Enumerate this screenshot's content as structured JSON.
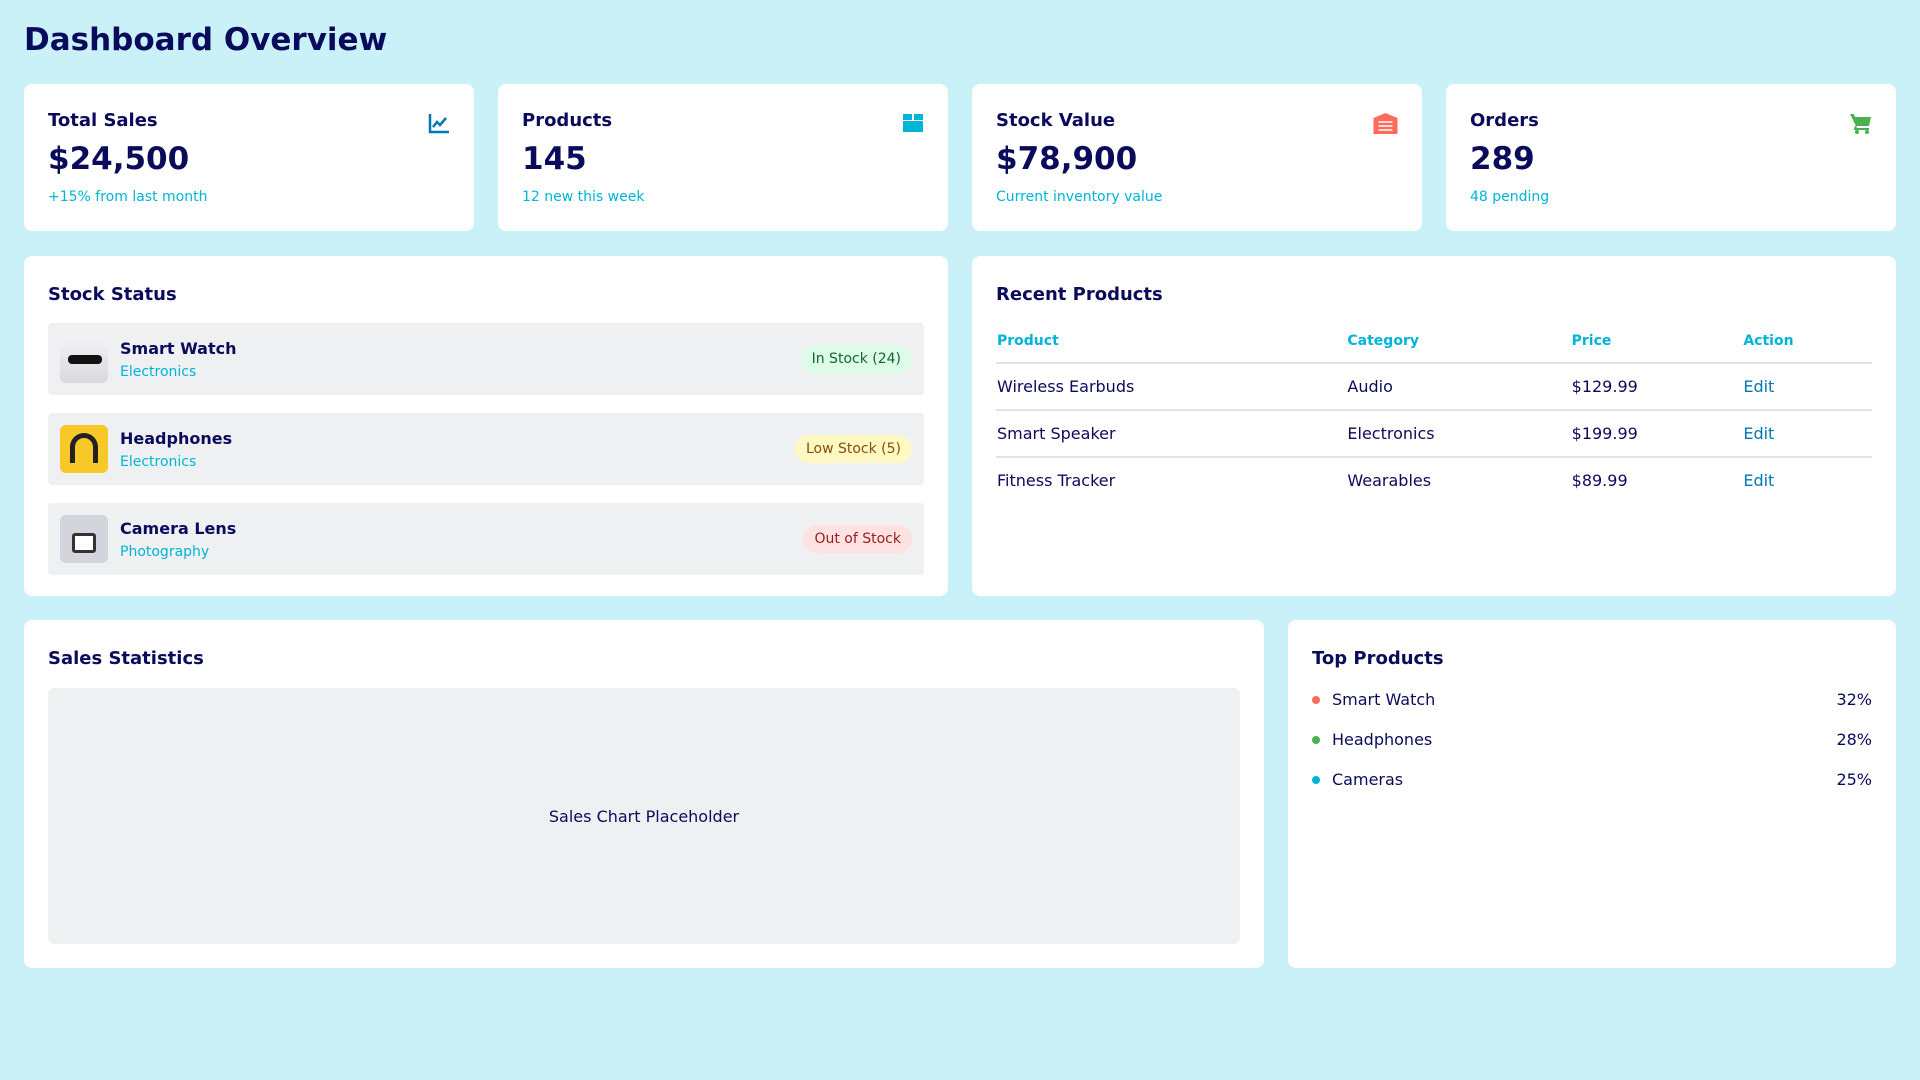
{
  "page_title": "Dashboard Overview",
  "stats": [
    {
      "title": "Total Sales",
      "value": "$24,500",
      "sub": "+15% from last month",
      "icon": "chart-line-icon",
      "color": "#0077b6"
    },
    {
      "title": "Products",
      "value": "145",
      "sub": "12 new this week",
      "icon": "box-icon",
      "color": "#00b4d8"
    },
    {
      "title": "Stock Value",
      "value": "$78,900",
      "sub": "Current inventory value",
      "icon": "warehouse-icon",
      "color": "#ff6b5b"
    },
    {
      "title": "Orders",
      "value": "289",
      "sub": "48 pending",
      "icon": "cart-icon",
      "color": "#4caf50"
    }
  ],
  "stock_status": {
    "title": "Stock Status",
    "items": [
      {
        "name": "Smart Watch",
        "category": "Electronics",
        "status": "In Stock (24)",
        "bg": "#dcfce7",
        "fg": "#166534"
      },
      {
        "name": "Headphones",
        "category": "Electronics",
        "status": "Low Stock (5)",
        "bg": "#fef9c3",
        "fg": "#854d0e"
      },
      {
        "name": "Camera Lens",
        "category": "Photography",
        "status": "Out of Stock",
        "bg": "#fee2e2",
        "fg": "#991b1b"
      }
    ]
  },
  "recent_products": {
    "title": "Recent Products",
    "headers": [
      "Product",
      "Category",
      "Price",
      "Action"
    ],
    "rows": [
      [
        "Wireless Earbuds",
        "Audio",
        "$129.99",
        "Edit"
      ],
      [
        "Smart Speaker",
        "Electronics",
        "$199.99",
        "Edit"
      ],
      [
        "Fitness Tracker",
        "Wearables",
        "$89.99",
        "Edit"
      ]
    ]
  },
  "sales_statistics": {
    "title": "Sales Statistics",
    "placeholder": "Sales Chart Placeholder"
  },
  "top_products": {
    "title": "Top Products",
    "items": [
      {
        "name": "Smart Watch",
        "pct": "32%",
        "color": "#ff6b5b"
      },
      {
        "name": "Headphones",
        "pct": "28%",
        "color": "#4caf50"
      },
      {
        "name": "Cameras",
        "pct": "25%",
        "color": "#00b4d8"
      }
    ]
  }
}
